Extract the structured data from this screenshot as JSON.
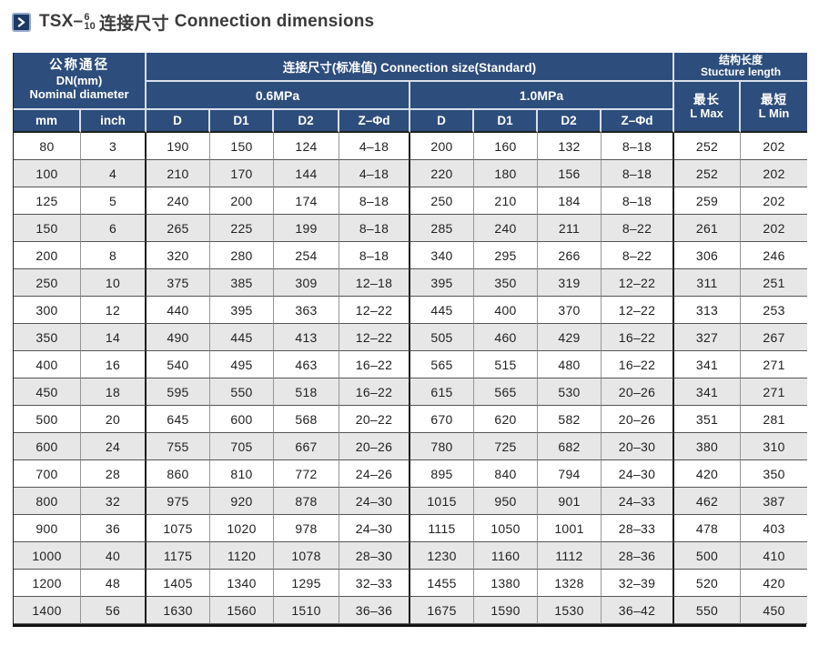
{
  "page": {
    "title": {
      "prefix": "TSX–",
      "fraction_top": "6",
      "fraction_bottom": "10",
      "cn": "连接尺寸",
      "en": "Connection dimensions"
    }
  },
  "colors": {
    "header_bg": "#2d4d7c",
    "stripe": "#e7e7e7",
    "icon_bg": "#1d3a66",
    "icon_border": "#93a9c9"
  },
  "icons": {
    "title_marker": "chevron-right-icon"
  },
  "table": {
    "header": {
      "nominal_cn": "公称通径",
      "nominal_dn": "DN(mm)",
      "nominal_en": "Nominal diameter",
      "unit_mm": "mm",
      "unit_inch": "inch",
      "connection": "连接尺寸(标准值) Connection size(Standard)",
      "pressure_06": "0.6MPa",
      "pressure_10": "1.0MPa",
      "dims": [
        "D",
        "D1",
        "D2",
        "Z–Φd"
      ],
      "structure_cn": "结构长度",
      "structure_en": "Stucture length",
      "lmax_cn": "最长",
      "lmax_en": "L Max",
      "lmin_cn": "最短",
      "lmin_en": "L Min"
    },
    "rows": [
      [
        "80",
        "3",
        "190",
        "150",
        "124",
        "4–18",
        "200",
        "160",
        "132",
        "8–18",
        "252",
        "202"
      ],
      [
        "100",
        "4",
        "210",
        "170",
        "144",
        "4–18",
        "220",
        "180",
        "156",
        "8–18",
        "252",
        "202"
      ],
      [
        "125",
        "5",
        "240",
        "200",
        "174",
        "8–18",
        "250",
        "210",
        "184",
        "8–18",
        "259",
        "202"
      ],
      [
        "150",
        "6",
        "265",
        "225",
        "199",
        "8–18",
        "285",
        "240",
        "211",
        "8–22",
        "261",
        "202"
      ],
      [
        "200",
        "8",
        "320",
        "280",
        "254",
        "8–18",
        "340",
        "295",
        "266",
        "8–22",
        "306",
        "246"
      ],
      [
        "250",
        "10",
        "375",
        "385",
        "309",
        "12–18",
        "395",
        "350",
        "319",
        "12–22",
        "311",
        "251"
      ],
      [
        "300",
        "12",
        "440",
        "395",
        "363",
        "12–22",
        "445",
        "400",
        "370",
        "12–22",
        "313",
        "253"
      ],
      [
        "350",
        "14",
        "490",
        "445",
        "413",
        "12–22",
        "505",
        "460",
        "429",
        "16–22",
        "327",
        "267"
      ],
      [
        "400",
        "16",
        "540",
        "495",
        "463",
        "16–22",
        "565",
        "515",
        "480",
        "16–22",
        "341",
        "271"
      ],
      [
        "450",
        "18",
        "595",
        "550",
        "518",
        "16–22",
        "615",
        "565",
        "530",
        "20–26",
        "341",
        "271"
      ],
      [
        "500",
        "20",
        "645",
        "600",
        "568",
        "20–22",
        "670",
        "620",
        "582",
        "20–26",
        "351",
        "281"
      ],
      [
        "600",
        "24",
        "755",
        "705",
        "667",
        "20–26",
        "780",
        "725",
        "682",
        "20–30",
        "380",
        "310"
      ],
      [
        "700",
        "28",
        "860",
        "810",
        "772",
        "24–26",
        "895",
        "840",
        "794",
        "24–30",
        "420",
        "350"
      ],
      [
        "800",
        "32",
        "975",
        "920",
        "878",
        "24–30",
        "1015",
        "950",
        "901",
        "24–33",
        "462",
        "387"
      ],
      [
        "900",
        "36",
        "1075",
        "1020",
        "978",
        "24–30",
        "1115",
        "1050",
        "1001",
        "28–33",
        "478",
        "403"
      ],
      [
        "1000",
        "40",
        "1175",
        "1120",
        "1078",
        "28–30",
        "1230",
        "1160",
        "1112",
        "28–36",
        "500",
        "410"
      ],
      [
        "1200",
        "48",
        "1405",
        "1340",
        "1295",
        "32–33",
        "1455",
        "1380",
        "1328",
        "32–39",
        "520",
        "420"
      ],
      [
        "1400",
        "56",
        "1630",
        "1560",
        "1510",
        "36–36",
        "1675",
        "1590",
        "1530",
        "36–42",
        "550",
        "450"
      ]
    ]
  }
}
